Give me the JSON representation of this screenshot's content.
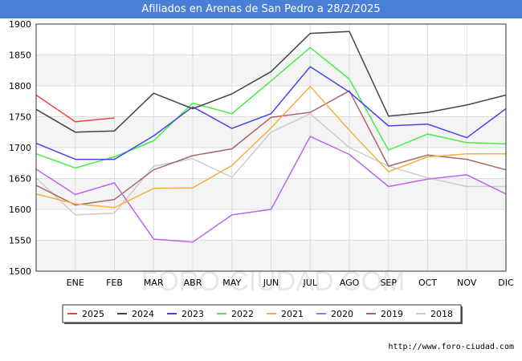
{
  "title": "Afiliados en Arenas de San Pedro a 28/2/2025",
  "source": "http://www.foro-ciudad.com",
  "watermark": "FORO-CIUDAD.COM",
  "chart_data": {
    "type": "line",
    "title": "Afiliados en Arenas de San Pedro a 28/2/2025",
    "xlabel": "",
    "ylabel": "",
    "categories": [
      "",
      "ENE",
      "FEB",
      "MAR",
      "ABR",
      "MAY",
      "JUN",
      "JUL",
      "AGO",
      "SEP",
      "OCT",
      "NOV",
      "DIC"
    ],
    "ylim": [
      1500,
      1900
    ],
    "yticks": [
      1500,
      1550,
      1600,
      1650,
      1700,
      1750,
      1800,
      1850,
      1900
    ],
    "grid": true,
    "legend_position": "bottom",
    "series": [
      {
        "name": "2025",
        "color": "#ee4444",
        "values": [
          1785,
          1742,
          1748,
          null,
          null,
          null,
          null,
          null,
          null,
          null,
          null,
          null,
          null
        ]
      },
      {
        "name": "2024",
        "color": "#444444",
        "values": [
          1762,
          1725,
          1727,
          1788,
          1763,
          1787,
          1823,
          1885,
          1888,
          1751,
          1757,
          1769,
          1785
        ]
      },
      {
        "name": "2023",
        "color": "#4444ee",
        "values": [
          1707,
          1681,
          1681,
          1719,
          1766,
          1731,
          1755,
          1831,
          1790,
          1735,
          1738,
          1716,
          1763
        ]
      },
      {
        "name": "2022",
        "color": "#44ee44",
        "values": [
          1690,
          1667,
          1685,
          1711,
          1772,
          1755,
          1808,
          1862,
          1811,
          1696,
          1722,
          1708,
          1706
        ]
      },
      {
        "name": "2021",
        "color": "#f5b041",
        "values": [
          1625,
          1609,
          1603,
          1634,
          1635,
          1671,
          1732,
          1799,
          1728,
          1661,
          1685,
          1690,
          1690
        ]
      },
      {
        "name": "2020",
        "color": "#bb66ee",
        "values": [
          1665,
          1624,
          1643,
          1552,
          1547,
          1591,
          1600,
          1718,
          1689,
          1637,
          1649,
          1656,
          1625
        ]
      },
      {
        "name": "2019",
        "color": "#aa6666",
        "values": [
          1639,
          1607,
          1616,
          1664,
          1687,
          1698,
          1749,
          1757,
          1792,
          1670,
          1688,
          1681,
          1664
        ]
      },
      {
        "name": "2018",
        "color": "#cccccc",
        "values": [
          1651,
          1591,
          1594,
          1670,
          1682,
          1652,
          1725,
          1755,
          1700,
          1670,
          1651,
          1637,
          1637
        ]
      }
    ]
  }
}
